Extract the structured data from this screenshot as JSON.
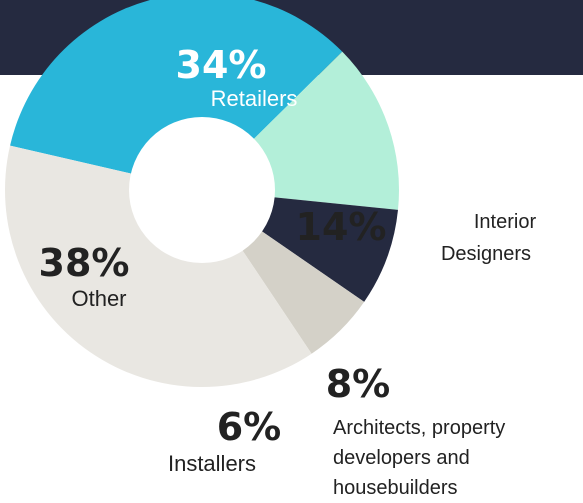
{
  "chart_data": {
    "type": "pie",
    "donut": true,
    "slices": [
      {
        "label": "Retailers",
        "value": 34,
        "value_label": "34%",
        "color": "#29b6d9"
      },
      {
        "label": "Interior Designers",
        "value": 14,
        "value_label": "14%",
        "color": "#b3efd9"
      },
      {
        "label": "Architects, property developers and housebuilders",
        "value": 8,
        "value_label": "8%",
        "color": "#252a40"
      },
      {
        "label": "Installers",
        "value": 6,
        "value_label": "6%",
        "color": "#d4d1c8"
      },
      {
        "label": "Other",
        "value": 38,
        "value_label": "38%",
        "color": "#e9e7e2"
      }
    ]
  },
  "labels": {
    "retailers": {
      "pct": "34%",
      "name": "Retailers"
    },
    "interior": {
      "pct": "14%",
      "name_line1": "Interior",
      "name_line2": "Designers"
    },
    "architects": {
      "pct": "8%",
      "name_line1": "Architects, property",
      "name_line2": "developers and",
      "name_line3": "housebuilders"
    },
    "installers": {
      "pct": "6%",
      "name": "Installers"
    },
    "other": {
      "pct": "38%",
      "name": "Other"
    }
  },
  "colors": {
    "banner": "#252a40",
    "label_text": "#222222",
    "value_on_dark": "#ffffff",
    "value_on_light": "#222222"
  }
}
